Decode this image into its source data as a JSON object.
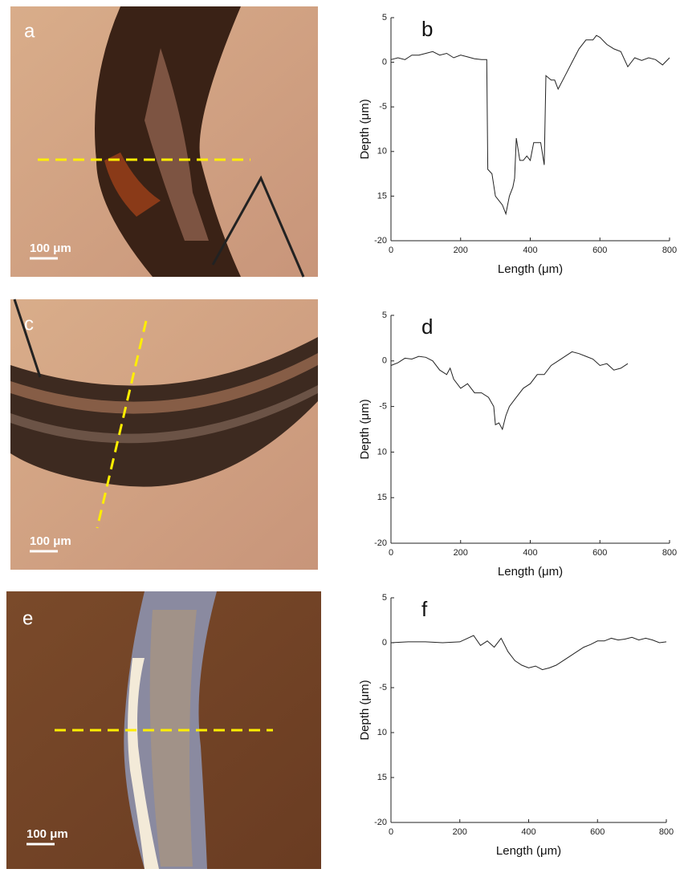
{
  "images": [
    {
      "label": "a",
      "scale_bar": "100 μm"
    },
    {
      "label": "c",
      "scale_bar": "100 μm"
    },
    {
      "label": "e",
      "scale_bar": "100 μm"
    }
  ],
  "chart_data": [
    {
      "type": "line",
      "panel_label": "b",
      "xlabel": "Length (μm)",
      "ylabel": "Depth (μm)",
      "color": "#222222",
      "xlim": [
        0,
        800
      ],
      "xticks": [
        0,
        200,
        400,
        600,
        800
      ],
      "ylim": [
        -20,
        5
      ],
      "yticks": [
        5,
        0,
        -5,
        {
          "value": -10,
          "label": "10"
        },
        {
          "value": -15,
          "label": "15"
        },
        -20
      ],
      "x": [
        0,
        20,
        40,
        60,
        80,
        100,
        120,
        140,
        160,
        180,
        200,
        220,
        240,
        260,
        275,
        278,
        290,
        300,
        320,
        330,
        340,
        350,
        355,
        360,
        370,
        380,
        390,
        400,
        410,
        430,
        440,
        445,
        460,
        470,
        480,
        500,
        520,
        540,
        560,
        580,
        590,
        600,
        620,
        640,
        660,
        680,
        700,
        720,
        740,
        760,
        780,
        800
      ],
      "values": [
        0.3,
        0.5,
        0.3,
        0.8,
        0.8,
        1.0,
        1.2,
        0.8,
        1.0,
        0.5,
        0.8,
        0.6,
        0.4,
        0.3,
        0.3,
        -12,
        -12.5,
        -15,
        -16,
        -17,
        -15,
        -14,
        -13,
        -8.5,
        -11,
        -11,
        -10.5,
        -11,
        -9,
        -9,
        -11.5,
        -1.5,
        -2,
        -2,
        -3,
        -1.5,
        0,
        1.5,
        2.5,
        2.5,
        3,
        2.8,
        2,
        1.5,
        1.2,
        -0.5,
        0.5,
        0.2,
        0.5,
        0.3,
        -0.3,
        0.5
      ]
    },
    {
      "type": "line",
      "panel_label": "d",
      "xlabel": "Length (μm)",
      "ylabel": "Depth (μm)",
      "color": "#222222",
      "xlim": [
        0,
        800
      ],
      "xticks": [
        0,
        200,
        400,
        600,
        800
      ],
      "ylim": [
        -20,
        5
      ],
      "yticks": [
        5,
        0,
        -5,
        {
          "value": -10,
          "label": "10"
        },
        {
          "value": -15,
          "label": "15"
        },
        -20
      ],
      "x": [
        0,
        20,
        40,
        60,
        80,
        100,
        120,
        140,
        160,
        170,
        180,
        200,
        220,
        240,
        260,
        280,
        295,
        300,
        310,
        320,
        330,
        340,
        360,
        380,
        400,
        420,
        440,
        460,
        480,
        500,
        520,
        540,
        560,
        580,
        600,
        620,
        640,
        660,
        680
      ],
      "values": [
        -0.5,
        -0.2,
        0.3,
        0.2,
        0.5,
        0.4,
        0,
        -1,
        -1.5,
        -0.8,
        -2,
        -3,
        -2.5,
        -3.5,
        -3.5,
        -4,
        -5,
        -7,
        -6.8,
        -7.5,
        -6,
        -5,
        -4,
        -3,
        -2.5,
        -1.5,
        -1.5,
        -0.5,
        0,
        0.5,
        1,
        0.8,
        0.5,
        0.2,
        -0.5,
        -0.3,
        -1,
        -0.8,
        -0.3
      ]
    },
    {
      "type": "line",
      "panel_label": "f",
      "xlabel": "Length (μm)",
      "ylabel": "Depth (μm)",
      "color": "#222222",
      "xlim": [
        0,
        800
      ],
      "xticks": [
        0,
        200,
        400,
        600,
        800
      ],
      "ylim": [
        -20,
        5
      ],
      "yticks": [
        5,
        0,
        -5,
        {
          "value": -10,
          "label": "10"
        },
        {
          "value": -15,
          "label": "15"
        },
        -20
      ],
      "x": [
        0,
        50,
        100,
        150,
        200,
        240,
        260,
        280,
        300,
        320,
        340,
        360,
        380,
        400,
        420,
        440,
        460,
        480,
        500,
        520,
        540,
        560,
        580,
        600,
        620,
        640,
        660,
        680,
        700,
        720,
        740,
        760,
        780,
        800
      ],
      "values": [
        0,
        0.1,
        0.1,
        0,
        0.1,
        0.8,
        -0.3,
        0.2,
        -0.5,
        0.5,
        -1,
        -2,
        -2.5,
        -2.8,
        -2.6,
        -3,
        -2.8,
        -2.5,
        -2,
        -1.5,
        -1,
        -0.5,
        -0.2,
        0.2,
        0.2,
        0.5,
        0.3,
        0.4,
        0.6,
        0.3,
        0.5,
        0.3,
        0,
        0.1
      ]
    }
  ]
}
